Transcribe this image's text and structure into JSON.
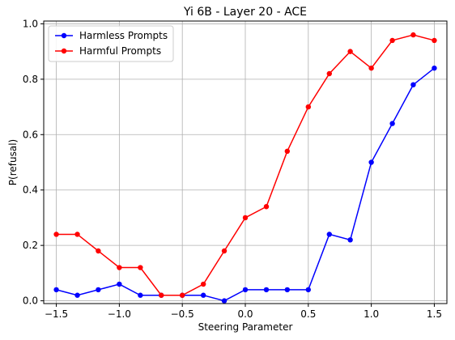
{
  "chart_data": {
    "type": "line",
    "title": "Yi 6B - Layer 20 - ACE",
    "xlabel": "Steering Parameter",
    "ylabel": "P(refusal)",
    "xlim": [
      -1.6,
      1.6
    ],
    "ylim": [
      -0.01,
      1.01
    ],
    "xticks": [
      -1.5,
      -1.0,
      -0.5,
      0.0,
      0.5,
      1.0,
      1.5
    ],
    "xtick_labels": [
      "−1.5",
      "−1.0",
      "−0.5",
      "0.0",
      "0.5",
      "1.0",
      "1.5"
    ],
    "yticks": [
      0.0,
      0.2,
      0.4,
      0.6,
      0.8,
      1.0
    ],
    "ytick_labels": [
      "0.0",
      "0.2",
      "0.4",
      "0.6",
      "0.8",
      "1.0"
    ],
    "grid": true,
    "legend_position": "top-left",
    "x": [
      -1.5,
      -1.333,
      -1.167,
      -1.0,
      -0.833,
      -0.667,
      -0.5,
      -0.333,
      -0.167,
      0.0,
      0.167,
      0.333,
      0.5,
      0.667,
      0.833,
      1.0,
      1.167,
      1.333,
      1.5
    ],
    "series": [
      {
        "name": "Harmless Prompts",
        "color": "#0000ff",
        "values": [
          0.04,
          0.02,
          0.04,
          0.06,
          0.02,
          0.02,
          0.02,
          0.02,
          0.0,
          0.04,
          0.04,
          0.04,
          0.04,
          0.24,
          0.22,
          0.5,
          0.64,
          0.78,
          0.84
        ]
      },
      {
        "name": "Harmful Prompts",
        "color": "#ff0000",
        "values": [
          0.24,
          0.24,
          0.18,
          0.12,
          0.12,
          0.02,
          0.02,
          0.06,
          0.18,
          0.3,
          0.34,
          0.54,
          0.7,
          0.82,
          0.9,
          0.84,
          0.94,
          0.96,
          0.94
        ]
      }
    ]
  }
}
